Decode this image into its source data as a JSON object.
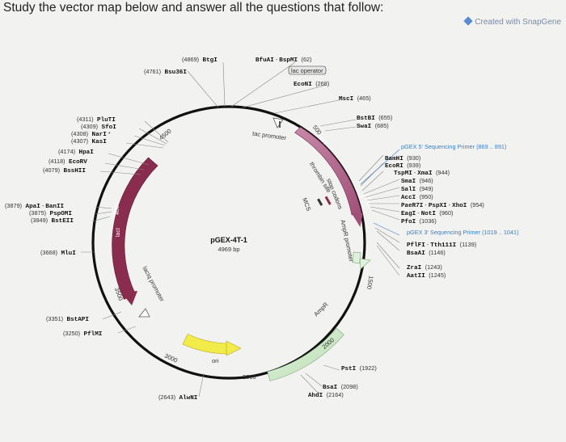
{
  "header": {
    "question": "Study the vector map below and answer all the questions that follow:"
  },
  "credit": {
    "text": "Created with SnapGene"
  },
  "plasmid": {
    "name": "pGEX-4T-1",
    "size": "4969 bp"
  },
  "ticks": [
    "500",
    "1000",
    "1500",
    "2000",
    "2500",
    "3000",
    "3500",
    "4000",
    "4500"
  ],
  "features": {
    "tac_promoter": "tac promoter",
    "gst": "GST",
    "thrombin_site": "thrombin site",
    "stop_codons": "stop codons",
    "mcs": "MCS",
    "lac_operator": "lac operator",
    "ampr_promoter": "AmpR promoter",
    "ampr": "AmpR",
    "ori": "ori",
    "laclq_promoter": "lacIq promoter",
    "laci": "lacI"
  },
  "sites": {
    "btgi_pos": "(4869)",
    "btgi": "BtgI",
    "bsu36i_pos": "(4761)",
    "bsu36i": "Bsu36I",
    "bfuai": "BfuAI",
    "bspmi": "BspMI",
    "bfuai_pos": "(62)",
    "econi": "EcoNI",
    "econi_pos": "(268)",
    "msci": "MscI",
    "msci_pos": "(465)",
    "pluti_pos": "(4311)",
    "pluti": "PluTI",
    "sfoi_pos": "(4309)",
    "sfoi": "SfoI",
    "nari_pos": "(4308)",
    "nari": "NarI",
    "kasi_pos": "(4307)",
    "kasi": "KasI",
    "hpai_pos": "(4174)",
    "hpai": "HpaI",
    "ecorv_pos": "(4118)",
    "ecorv": "EcoRV",
    "bssh2_pos": "(4079)",
    "bssh2": "BssHII",
    "apai_pos": "(3879)",
    "apai": "ApaI",
    "banii": "BanII",
    "psp_pos": "(3875)",
    "psp": "PspOMI",
    "bsteii_pos": "(3849)",
    "bsteii": "BstEII",
    "mlui_pos": "(3668)",
    "mlui": "MluI",
    "bstapi_pos": "(3351)",
    "bstapi": "BstAPI",
    "pflmi_pos": "(3250)",
    "pflmi": "PflMI",
    "alwni_pos": "(2643)",
    "alwni": "AlwNI",
    "bstbi": "BstBI",
    "bstbi_pos": "(655)",
    "swai": "SwaI",
    "swai_pos": "(685)",
    "bamhi": "BamHI",
    "bamhi_pos": "(930)",
    "ecori": "EcoRI",
    "ecori_pos": "(939)",
    "tspmi": "TspMI",
    "xmai": "XmaI",
    "xmai_pos": "(944)",
    "smai": "SmaI",
    "smai_pos": "(946)",
    "sali": "SalI",
    "sali_pos": "(949)",
    "acci": "AccI",
    "acci_pos": "(950)",
    "paer7i": "PaeR7I",
    "pspxi": "PspXI",
    "xhoi": "XhoI",
    "xhoi_pos": "(954)",
    "eagi": "EagI",
    "noti": "NotI",
    "noti_pos": "(960)",
    "pfoi": "PfoI",
    "pfoi_pos": "(1036)",
    "pflfi": "PflFI",
    "tth111i": "Tth111I",
    "tth_pos": "(1139)",
    "bsaai": "BsaAI",
    "bsaai_pos": "(1146)",
    "zrai": "ZraI",
    "zrai_pos": "(1243)",
    "aatii": "AatII",
    "aatii_pos": "(1245)",
    "psti": "PstI",
    "psti_pos": "(1922)",
    "bsai": "BsaI",
    "bsai_pos": "(2098)",
    "ahdi": "AhdI",
    "ahdi_pos": "(2164)"
  },
  "primers": {
    "fwd": "pGEX 5' Sequencing Primer",
    "fwd_range": "(869 .. 891)",
    "rev": "pGEX 3' Sequencing Primer",
    "rev_range": "(1019 .. 1041)"
  },
  "colors": {
    "gst": "#b06a8c",
    "ampr": "#c9e8c4",
    "ori": "#f2ec4a",
    "laci": "#8a2c4e",
    "primer": "#3b7fc0"
  }
}
